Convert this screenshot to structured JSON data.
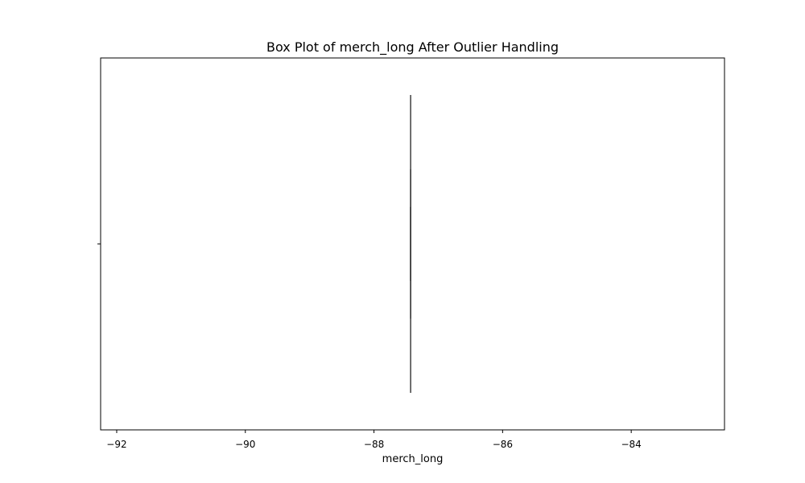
{
  "chart_data": {
    "type": "box",
    "title": "Box Plot of merch_long After Outlier Handling",
    "xlabel": "merch_long",
    "ylabel": "",
    "orientation": "horizontal",
    "xlim": [
      -92.25,
      -82.55
    ],
    "xticks": [
      -92,
      -90,
      -88,
      -86,
      -84
    ],
    "xtick_labels": [
      "−92",
      "−90",
      "−88",
      "−86",
      "−84"
    ],
    "grid": false,
    "series": [
      {
        "whisker_low": -87.43,
        "q1": -87.43,
        "median": -87.43,
        "q3": -87.43,
        "whisker_high": -87.43
      }
    ]
  },
  "colors": {
    "axes": "#000000",
    "box_stroke": "#3f3f3f",
    "background": "#ffffff"
  }
}
